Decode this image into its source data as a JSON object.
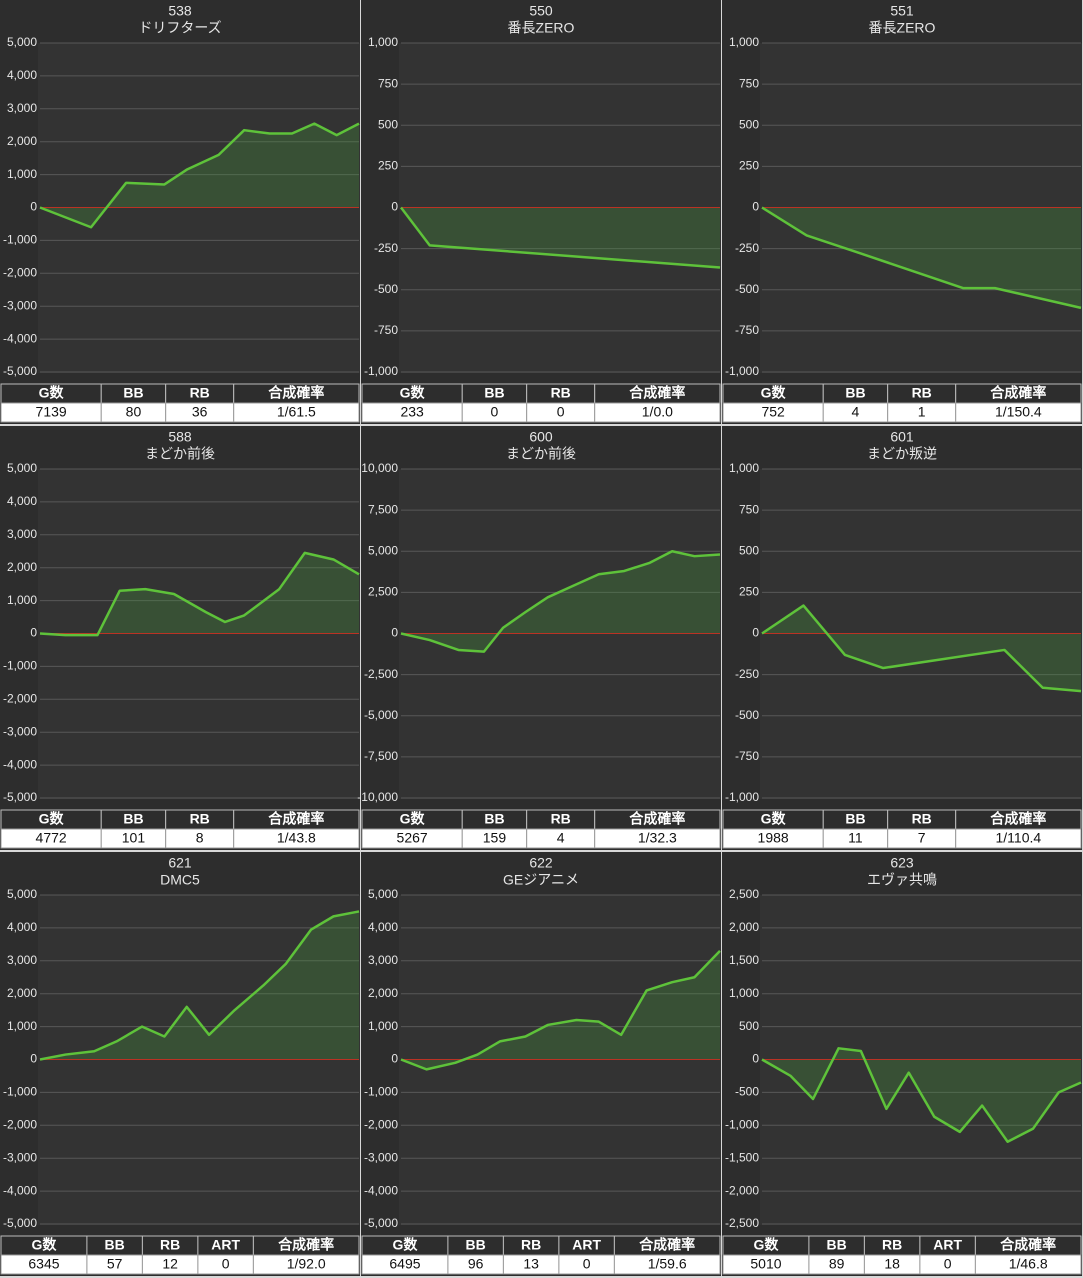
{
  "chart_data": [
    {
      "type": "line",
      "title": "538",
      "subtitle": "ドリフターズ",
      "xlim": [
        0,
        100
      ],
      "ylim": [
        -5000,
        5000
      ],
      "yticks": [
        {
          "value": -5000,
          "label": "-5,000"
        },
        {
          "value": -4000,
          "label": "-4,000"
        },
        {
          "value": -3000,
          "label": "-3,000"
        },
        {
          "value": -2000,
          "label": "-2,000"
        },
        {
          "value": -1000,
          "label": "-1,000"
        },
        0,
        {
          "value": 1000,
          "label": "1,000"
        },
        {
          "value": 2000,
          "label": "2,000"
        },
        {
          "value": 3000,
          "label": "3,000"
        },
        {
          "value": 4000,
          "label": "4,000"
        },
        {
          "value": 5000,
          "label": "5,000"
        }
      ],
      "grid": true,
      "color": "#5ec23a",
      "x": [
        0,
        16,
        27,
        39,
        46,
        56,
        64,
        72,
        79,
        86,
        93,
        100
      ],
      "values": [
        0,
        -600,
        750,
        700,
        1150,
        1600,
        2350,
        2250,
        2250,
        2550,
        2200,
        2550
      ],
      "table": {
        "columns": [
          "G数",
          "BB",
          "RB",
          "合成確率"
        ],
        "row": [
          7139,
          80,
          36,
          "1/61.5"
        ]
      }
    },
    {
      "type": "line",
      "title": "550",
      "subtitle": "番長ZERO",
      "xlim": [
        0,
        100
      ],
      "ylim": [
        -1000,
        1000
      ],
      "yticks": [
        {
          "value": -1000,
          "label": "-1,000"
        },
        -750,
        -500,
        -250,
        0,
        250,
        500,
        750,
        {
          "value": 1000,
          "label": "1,000"
        }
      ],
      "grid": true,
      "color": "#5ec23a",
      "x": [
        0,
        9,
        100
      ],
      "values": [
        0,
        -230,
        -365
      ],
      "table": {
        "columns": [
          "G数",
          "BB",
          "RB",
          "合成確率"
        ],
        "row": [
          233,
          0,
          0,
          "1/0.0"
        ]
      }
    },
    {
      "type": "line",
      "title": "551",
      "subtitle": "番長ZERO",
      "xlim": [
        0,
        100
      ],
      "ylim": [
        -1000,
        1000
      ],
      "yticks": [
        {
          "value": -1000,
          "label": "-1,000"
        },
        -750,
        -500,
        -250,
        0,
        250,
        500,
        750,
        {
          "value": 1000,
          "label": "1,000"
        }
      ],
      "grid": true,
      "color": "#5ec23a",
      "x": [
        0,
        14,
        28,
        63,
        73,
        100
      ],
      "values": [
        0,
        -170,
        -260,
        -490,
        -490,
        -610
      ],
      "table": {
        "columns": [
          "G数",
          "BB",
          "RB",
          "合成確率"
        ],
        "row": [
          752,
          4,
          1,
          "1/150.4"
        ]
      }
    },
    {
      "type": "line",
      "title": "588",
      "subtitle": "まどか前後",
      "xlim": [
        0,
        100
      ],
      "ylim": [
        -5000,
        5000
      ],
      "yticks": [
        {
          "value": -5000,
          "label": "-5,000"
        },
        {
          "value": -4000,
          "label": "-4,000"
        },
        {
          "value": -3000,
          "label": "-3,000"
        },
        {
          "value": -2000,
          "label": "-2,000"
        },
        {
          "value": -1000,
          "label": "-1,000"
        },
        0,
        {
          "value": 1000,
          "label": "1,000"
        },
        {
          "value": 2000,
          "label": "2,000"
        },
        {
          "value": 3000,
          "label": "3,000"
        },
        {
          "value": 4000,
          "label": "4,000"
        },
        {
          "value": 5000,
          "label": "5,000"
        }
      ],
      "grid": true,
      "color": "#5ec23a",
      "x": [
        0,
        8,
        18,
        25,
        33,
        42,
        52,
        58,
        64,
        75,
        83,
        92,
        100
      ],
      "values": [
        0,
        -50,
        -50,
        1300,
        1350,
        1200,
        650,
        350,
        550,
        1350,
        2450,
        2250,
        1800
      ],
      "table": {
        "columns": [
          "G数",
          "BB",
          "RB",
          "合成確率"
        ],
        "row": [
          4772,
          101,
          8,
          "1/43.8"
        ]
      }
    },
    {
      "type": "line",
      "title": "600",
      "subtitle": "まどか前後",
      "xlim": [
        0,
        100
      ],
      "ylim": [
        -10000,
        10000
      ],
      "yticks": [
        {
          "value": -10000,
          "label": "-10,000"
        },
        {
          "value": -7500,
          "label": "-7,500"
        },
        {
          "value": -5000,
          "label": "-5,000"
        },
        {
          "value": -2500,
          "label": "-2,500"
        },
        0,
        {
          "value": 2500,
          "label": "2,500"
        },
        {
          "value": 5000,
          "label": "5,000"
        },
        {
          "value": 7500,
          "label": "7,500"
        },
        {
          "value": 10000,
          "label": "10,000"
        }
      ],
      "grid": true,
      "color": "#5ec23a",
      "x": [
        0,
        9,
        18,
        26,
        32,
        39,
        46,
        54,
        62,
        70,
        78,
        85,
        92,
        100
      ],
      "values": [
        0,
        -400,
        -1000,
        -1100,
        350,
        1300,
        2200,
        2900,
        3600,
        3800,
        4300,
        5000,
        4700,
        4800
      ],
      "table": {
        "columns": [
          "G数",
          "BB",
          "RB",
          "合成確率"
        ],
        "row": [
          5267,
          159,
          4,
          "1/32.3"
        ]
      }
    },
    {
      "type": "line",
      "title": "601",
      "subtitle": "まどか叛逆",
      "xlim": [
        0,
        100
      ],
      "ylim": [
        -1000,
        1000
      ],
      "yticks": [
        {
          "value": -1000,
          "label": "-1,000"
        },
        -750,
        -500,
        -250,
        0,
        250,
        500,
        750,
        {
          "value": 1000,
          "label": "1,000"
        }
      ],
      "grid": true,
      "color": "#5ec23a",
      "x": [
        0,
        13,
        26,
        38,
        76,
        88,
        100
      ],
      "values": [
        0,
        170,
        -130,
        -210,
        -100,
        -330,
        -350
      ],
      "table": {
        "columns": [
          "G数",
          "BB",
          "RB",
          "合成確率"
        ],
        "row": [
          1988,
          11,
          7,
          "1/110.4"
        ]
      }
    },
    {
      "type": "line",
      "title": "621",
      "subtitle": "DMC5",
      "xlim": [
        0,
        100
      ],
      "ylim": [
        -5000,
        5000
      ],
      "yticks": [
        {
          "value": -5000,
          "label": "-5,000"
        },
        {
          "value": -4000,
          "label": "-4,000"
        },
        {
          "value": -3000,
          "label": "-3,000"
        },
        {
          "value": -2000,
          "label": "-2,000"
        },
        {
          "value": -1000,
          "label": "-1,000"
        },
        0,
        {
          "value": 1000,
          "label": "1,000"
        },
        {
          "value": 2000,
          "label": "2,000"
        },
        {
          "value": 3000,
          "label": "3,000"
        },
        {
          "value": 4000,
          "label": "4,000"
        },
        {
          "value": 5000,
          "label": "5,000"
        }
      ],
      "grid": true,
      "color": "#5ec23a",
      "x": [
        0,
        8,
        17,
        24,
        32,
        39,
        46,
        53,
        61,
        70,
        77,
        85,
        92,
        100
      ],
      "values": [
        0,
        150,
        250,
        550,
        1000,
        700,
        1600,
        750,
        1500,
        2250,
        2900,
        3950,
        4350,
        4500
      ],
      "table": {
        "columns": [
          "G数",
          "BB",
          "RB",
          "ART",
          "合成確率"
        ],
        "row": [
          6345,
          57,
          12,
          0,
          "1/92.0"
        ]
      }
    },
    {
      "type": "line",
      "title": "622",
      "subtitle": "GEジアニメ",
      "xlim": [
        0,
        100
      ],
      "ylim": [
        -5000,
        5000
      ],
      "yticks": [
        {
          "value": -5000,
          "label": "-5,000"
        },
        {
          "value": -4000,
          "label": "-4,000"
        },
        {
          "value": -3000,
          "label": "-3,000"
        },
        {
          "value": -2000,
          "label": "-2,000"
        },
        {
          "value": -1000,
          "label": "-1,000"
        },
        0,
        {
          "value": 1000,
          "label": "1,000"
        },
        {
          "value": 2000,
          "label": "2,000"
        },
        {
          "value": 3000,
          "label": "3,000"
        },
        {
          "value": 4000,
          "label": "4,000"
        },
        {
          "value": 5000,
          "label": "5,000"
        }
      ],
      "grid": true,
      "color": "#5ec23a",
      "x": [
        0,
        8,
        17,
        24,
        31,
        39,
        46,
        55,
        62,
        69,
        77,
        85,
        92,
        100
      ],
      "values": [
        0,
        -300,
        -100,
        150,
        550,
        700,
        1050,
        1200,
        1150,
        750,
        2100,
        2350,
        2500,
        3300
      ],
      "table": {
        "columns": [
          "G数",
          "BB",
          "RB",
          "ART",
          "合成確率"
        ],
        "row": [
          6495,
          96,
          13,
          0,
          "1/59.6"
        ]
      }
    },
    {
      "type": "line",
      "title": "623",
      "subtitle": "エヴァ共鳴",
      "xlim": [
        0,
        100
      ],
      "ylim": [
        -2500,
        2500
      ],
      "yticks": [
        {
          "value": -2500,
          "label": "-2,500"
        },
        {
          "value": -2000,
          "label": "-2,000"
        },
        {
          "value": -1500,
          "label": "-1,500"
        },
        {
          "value": -1000,
          "label": "-1,000"
        },
        -500,
        0,
        500,
        {
          "value": 1000,
          "label": "1,000"
        },
        {
          "value": 1500,
          "label": "1,500"
        },
        {
          "value": 2000,
          "label": "2,000"
        },
        {
          "value": 2500,
          "label": "2,500"
        }
      ],
      "grid": true,
      "color": "#5ec23a",
      "x": [
        0,
        9,
        16,
        24,
        31,
        39,
        46,
        54,
        62,
        69,
        77,
        85,
        93,
        100
      ],
      "values": [
        0,
        -250,
        -600,
        170,
        130,
        -750,
        -200,
        -870,
        -1100,
        -700,
        -1250,
        -1050,
        -500,
        -350
      ],
      "table": {
        "columns": [
          "G数",
          "BB",
          "RB",
          "ART",
          "合成確率"
        ],
        "row": [
          5010,
          89,
          18,
          0,
          "1/46.8"
        ]
      }
    }
  ]
}
